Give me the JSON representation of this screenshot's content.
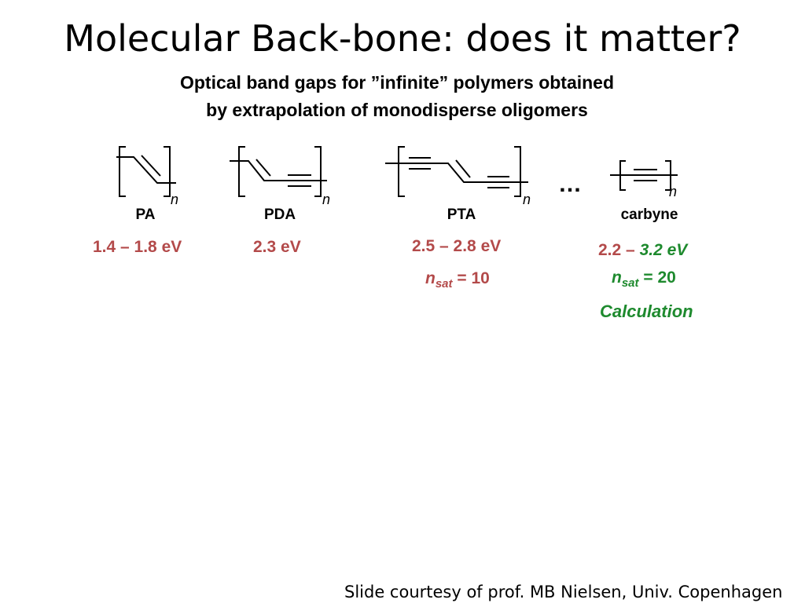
{
  "slide": {
    "title": "Molecular Back-bone: does it matter?",
    "subtitle_line1": "Optical band gaps for ”infinite” polymers obtained",
    "subtitle_line2": "by extrapolation of monodisperse oligomers",
    "credit": "Slide courtesy of prof. MB Nielsen, Univ. Copenhagen"
  },
  "polymers": [
    {
      "label": "PA",
      "index": "n",
      "band_gap": "1.4 – 1.8 eV"
    },
    {
      "label": "PDA",
      "index": "n",
      "band_gap": "2.3 eV"
    },
    {
      "label": "PTA",
      "index": "n",
      "band_gap": "2.5 – 2.8 eV",
      "nsat_symbol": "n",
      "nsat_sub": "sat",
      "nsat_value": "= 10"
    },
    {
      "label": "carbyne",
      "index": "n",
      "band_gap_low": "2.2 –",
      "band_gap_high": "3.2 eV",
      "nsat_symbol": "n",
      "nsat_sub": "sat",
      "nsat_value": "= 20",
      "note": "Calculation"
    }
  ],
  "ellipsis": "…",
  "colors": {
    "red_value": "#b34a4a",
    "green_value": "#1e8a2e"
  }
}
